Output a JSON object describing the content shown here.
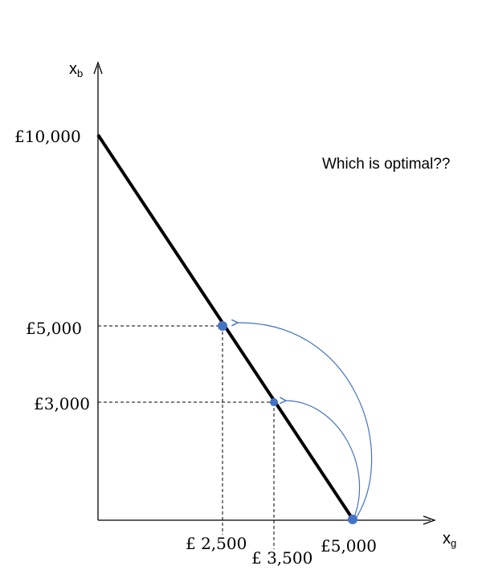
{
  "y_axis": {
    "label": "x",
    "sub": "b"
  },
  "x_axis": {
    "label": "x",
    "sub": "g"
  },
  "y_ticks": [
    "£10,000",
    "£5,000",
    "£3,000"
  ],
  "x_ticks": [
    "£ 2,500",
    "£ 3,500",
    "£5,000"
  ],
  "annotation": "Which is optimal??",
  "colors": {
    "line": "#000000",
    "point": "#4472c4",
    "arrow": "#4472c4",
    "dash": "#000000"
  },
  "budget_line": {
    "from": {
      "xg": 0,
      "xb": 10000
    },
    "to": {
      "xg": 5000,
      "xb": 0
    }
  },
  "points": [
    {
      "xg": 2500,
      "xb": 5000
    },
    {
      "xg": 3500,
      "xb": 3000
    },
    {
      "xg": 5000,
      "xb": 0
    }
  ]
}
